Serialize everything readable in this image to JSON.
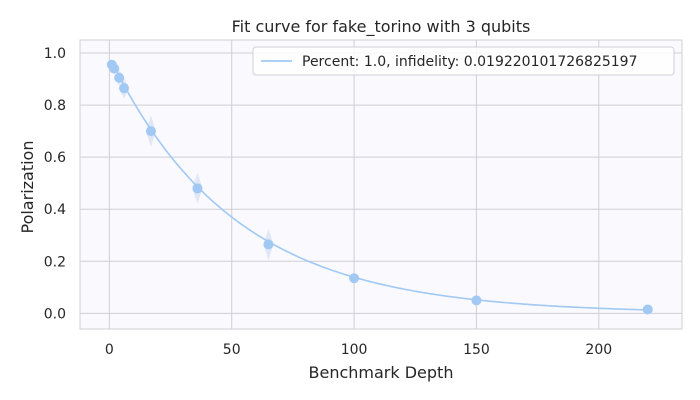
{
  "chart_data": {
    "type": "scatter",
    "title": "Fit curve for fake_torino with 3 qubits",
    "xlabel": "Benchmark Depth",
    "ylabel": "Polarization",
    "xlim": [
      -12,
      234
    ],
    "ylim": [
      -0.06,
      1.05
    ],
    "x_ticks": [
      0,
      50,
      100,
      150,
      200
    ],
    "x_tick_labels": [
      "0",
      "50",
      "100",
      "150",
      "200"
    ],
    "y_ticks": [
      0.0,
      0.2,
      0.4,
      0.6,
      0.8,
      1.0
    ],
    "y_tick_labels": [
      "0.0",
      "0.2",
      "0.4",
      "0.6",
      "0.8",
      "1.0"
    ],
    "grid": true,
    "legend_position": "upper-right",
    "points": {
      "x": [
        1,
        2,
        4,
        6,
        17,
        36,
        65,
        100,
        150,
        220
      ],
      "y": [
        0.955,
        0.94,
        0.905,
        0.865,
        0.7,
        0.48,
        0.265,
        0.135,
        0.05,
        0.015
      ],
      "err": [
        0.02,
        0.02,
        0.03,
        0.04,
        0.06,
        0.06,
        0.06,
        0.02,
        0.01,
        0.005
      ]
    },
    "series": [
      {
        "name": "Percent: 1.0, infidelity: 0.019220101726825197",
        "kind": "fit",
        "amplitude": 0.985,
        "decay": 0.9806,
        "x_range": [
          1,
          220
        ]
      }
    ],
    "colors": {
      "series": "#a1c9f4",
      "band": "#dde4f5",
      "plot_bg": "#f9f9fe",
      "grid": "#cfcfd4",
      "spine": "#cfcfd4",
      "text": "#262626"
    }
  }
}
